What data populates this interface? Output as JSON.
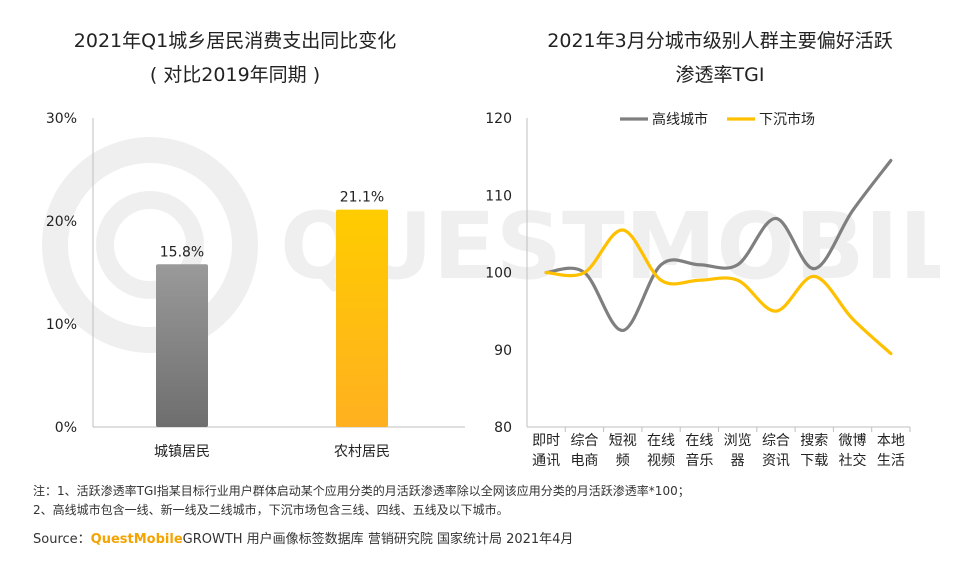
{
  "watermark": {
    "text": "QUESTMOBILE"
  },
  "chart_data": [
    {
      "type": "bar",
      "title": "2021年Q1城乡居民消费支出同比变化",
      "subtitle": "( 对比2019年同期 )",
      "categories": [
        "城镇居民",
        "农村居民"
      ],
      "values": [
        15.8,
        21.1
      ],
      "data_labels": [
        "15.8%",
        "21.1%"
      ],
      "ylim": [
        0,
        30
      ],
      "yticks": [
        0,
        10,
        20,
        30
      ],
      "ytick_labels": [
        "0%",
        "10%",
        "20%",
        "30%"
      ],
      "colors": [
        "#8a8a8a",
        "#ffc000"
      ],
      "grid": false
    },
    {
      "type": "line",
      "title": "2021年3月分城市级别人群主要偏好活跃",
      "subtitle": "渗透率TGI",
      "categories": [
        [
          "即时",
          "通讯"
        ],
        [
          "综合",
          "电商"
        ],
        [
          "短视",
          "频"
        ],
        [
          "在线",
          "视频"
        ],
        [
          "在线",
          "音乐"
        ],
        [
          "浏览",
          "器"
        ],
        [
          "综合",
          "资讯"
        ],
        [
          "搜索",
          "下载"
        ],
        [
          "微博",
          "社交"
        ],
        [
          "本地",
          "生活"
        ]
      ],
      "series": [
        {
          "name": "高线城市",
          "color": "#7f7f7f",
          "values": [
            100,
            100,
            92.5,
            101,
            101,
            101,
            107,
            100.5,
            108,
            114.5
          ]
        },
        {
          "name": "下沉市场",
          "color": "#ffc000",
          "values": [
            100,
            100,
            105.5,
            99,
            99,
            99,
            95,
            99.5,
            94,
            89.5
          ]
        }
      ],
      "ylim": [
        80,
        120
      ],
      "yticks": [
        80,
        90,
        100,
        110,
        120
      ],
      "legend": "top",
      "grid": false
    }
  ],
  "notes": {
    "line1": "注：1、活跃渗透率TGI指某目标行业用户群体启动某个应用分类的月活跃渗透率除以全网该应用分类的月活跃渗透率*100；",
    "line2": "2、高线城市包含一线、新一线及二线城市，下沉市场包含三线、四线、五线及以下城市。"
  },
  "source": {
    "label": "Source：",
    "brand": "QuestMobile",
    "rest": "GROWTH 用户画像标签数据库 营销研究院 国家统计局 2021年4月"
  }
}
